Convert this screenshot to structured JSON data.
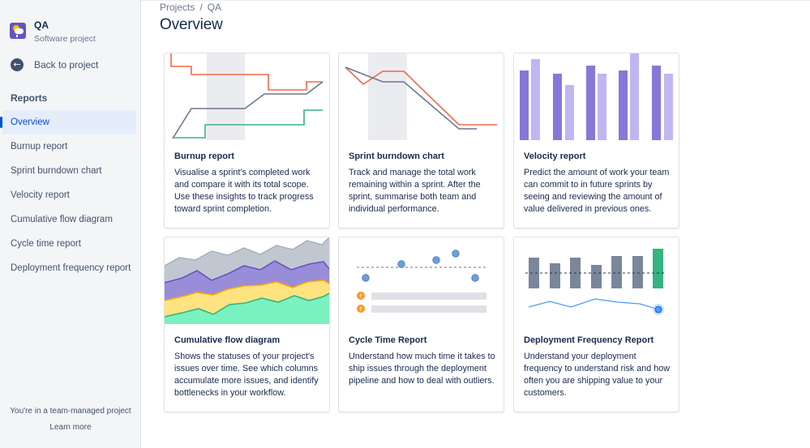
{
  "sidebar": {
    "project_name": "QA",
    "project_type": "Software project",
    "back_label": "Back to project",
    "section_title": "Reports",
    "items": [
      {
        "label": "Overview",
        "active": true
      },
      {
        "label": "Burnup report"
      },
      {
        "label": "Sprint burndown chart"
      },
      {
        "label": "Velocity report"
      },
      {
        "label": "Cumulative flow diagram"
      },
      {
        "label": "Cycle time report"
      },
      {
        "label": "Deployment frequency report"
      }
    ],
    "team_note": "You're in a team-managed project",
    "learn_more": "Learn more"
  },
  "breadcrumb": [
    "Projects",
    "QA"
  ],
  "page_title": "Overview",
  "cards": [
    {
      "title": "Burnup report",
      "description": "Visualise a sprint's completed work and compare it with its total scope. Use these insights to track progress toward sprint completion."
    },
    {
      "title": "Sprint burndown chart",
      "description": "Track and manage the total work remaining within a sprint. After the sprint, summarise both team and individual performance."
    },
    {
      "title": "Velocity report",
      "description": "Predict the amount of work your team can commit to in future sprints by seeing and reviewing the amount of value delivered in previous ones."
    },
    {
      "title": "Cumulative flow diagram",
      "description": "Shows the statuses of your project's issues over time. See which columns accumulate more issues, and identify bottlenecks in your workflow."
    },
    {
      "title": "Cycle Time Report",
      "description": "Understand how much time it takes to ship issues through the deployment pipeline and how to deal with outliers."
    },
    {
      "title": "Deployment Frequency Report",
      "description": "Understand your deployment frequency to understand risk and how often you are shipping value to your customers."
    }
  ],
  "colors": {
    "accent": "#0052cc",
    "scope_line": "#f06848",
    "progress_line": "#6b778c",
    "done_line": "#36b37e",
    "velocity_dark": "#8777d9",
    "velocity_light": "#c0b6f2",
    "cfd_gray": "#c1c7d0",
    "cfd_purple": "#998dd9",
    "cfd_yellow": "#ffe380",
    "cfd_green": "#79f2c0",
    "dot_blue": "#4c9aff",
    "deploy_bar": "#7a869a",
    "deploy_green": "#36b37e"
  }
}
